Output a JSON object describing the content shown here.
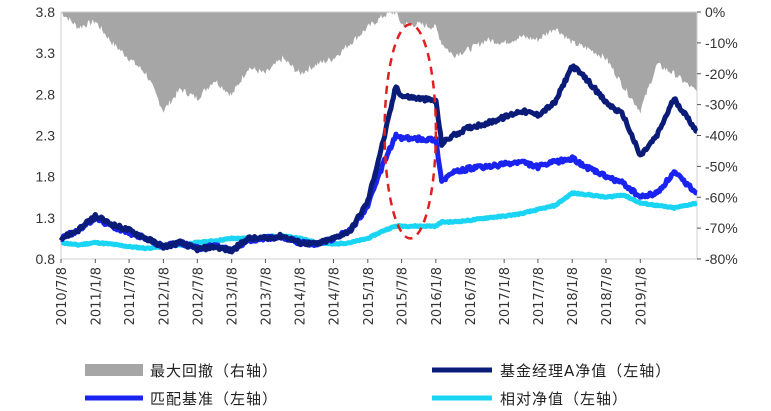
{
  "chart_data": {
    "type": "line",
    "x_ticks": [
      "2010/7/8",
      "2011/1/8",
      "2011/7/8",
      "2012/1/8",
      "2012/7/8",
      "2013/1/8",
      "2013/7/8",
      "2014/1/8",
      "2014/7/8",
      "2015/1/8",
      "2015/7/8",
      "2016/1/8",
      "2016/7/8",
      "2017/1/8",
      "2017/7/8",
      "2018/1/8",
      "2018/7/8",
      "2019/1/8"
    ],
    "left_axis": {
      "ticks": [
        "0.8",
        "1.3",
        "1.8",
        "2.3",
        "2.8",
        "3.3",
        "3.8"
      ],
      "ylim": [
        0.8,
        3.8
      ]
    },
    "right_axis": {
      "ticks": [
        "0%",
        "-10%",
        "-20%",
        "-30%",
        "-40%",
        "-50%",
        "-60%",
        "-70%",
        "-80%"
      ],
      "ylim": [
        -80,
        0
      ]
    },
    "x_range": [
      "2010/7/8",
      "2019/11/8"
    ],
    "legend": [
      {
        "name": "最大回撤（右轴）",
        "color": "#a6a6a6",
        "style": "area"
      },
      {
        "name": "基金经理A净值（左轴）",
        "color": "#0b1c78",
        "style": "line"
      },
      {
        "name": "匹配基准（左轴）",
        "color": "#1a23f0",
        "style": "line"
      },
      {
        "name": "相对净值（左轴）",
        "color": "#19d4f2",
        "style": "line"
      }
    ],
    "series": [
      {
        "name": "最大回撤（右轴）",
        "axis": "right",
        "color": "#a6a6a6",
        "x": [
          "2010/7/8",
          "2010/10/8",
          "2011/1/8",
          "2011/4/8",
          "2011/7/8",
          "2011/10/8",
          "2012/1/8",
          "2012/4/8",
          "2012/7/8",
          "2012/10/8",
          "2013/1/8",
          "2013/4/8",
          "2013/7/8",
          "2013/10/8",
          "2014/1/8",
          "2014/4/8",
          "2014/7/8",
          "2014/10/8",
          "2015/1/8",
          "2015/4/8",
          "2015/6/8",
          "2015/7/8",
          "2015/10/8",
          "2016/1/8",
          "2016/2/8",
          "2016/4/8",
          "2016/7/8",
          "2016/10/8",
          "2017/1/8",
          "2017/4/8",
          "2017/7/8",
          "2017/10/8",
          "2018/1/8",
          "2018/4/8",
          "2018/7/8",
          "2018/10/8",
          "2019/1/8",
          "2019/4/8",
          "2019/7/8",
          "2019/11/8"
        ],
        "values": [
          0,
          -5,
          -3,
          -10,
          -15,
          -20,
          -32,
          -25,
          -28,
          -22,
          -27,
          -18,
          -20,
          -15,
          -20,
          -17,
          -15,
          -10,
          -5,
          -1,
          0,
          -4,
          -4,
          -5,
          -10,
          -14,
          -12,
          -9,
          -10,
          -8,
          -9,
          -5,
          -10,
          -12,
          -15,
          -24,
          -32,
          -17,
          -20,
          -26
        ]
      },
      {
        "name": "基金经理A净值（左轴）",
        "axis": "left",
        "color": "#0b1c78",
        "x": [
          "2010/7/8",
          "2010/10/8",
          "2011/1/8",
          "2011/4/8",
          "2011/7/8",
          "2011/10/8",
          "2012/1/8",
          "2012/4/8",
          "2012/7/8",
          "2012/10/8",
          "2013/1/8",
          "2013/4/8",
          "2013/7/8",
          "2013/10/8",
          "2014/1/8",
          "2014/4/8",
          "2014/7/8",
          "2014/10/8",
          "2015/1/8",
          "2015/4/8",
          "2015/6/8",
          "2015/7/8",
          "2015/10/8",
          "2016/1/8",
          "2016/2/8",
          "2016/4/8",
          "2016/7/8",
          "2016/10/8",
          "2017/1/8",
          "2017/4/8",
          "2017/7/8",
          "2017/10/8",
          "2018/1/8",
          "2018/4/8",
          "2018/7/8",
          "2018/10/8",
          "2019/1/8",
          "2019/4/8",
          "2019/7/8",
          "2019/11/8"
        ],
        "values": [
          1.05,
          1.15,
          1.32,
          1.22,
          1.15,
          1.05,
          0.95,
          1.0,
          0.92,
          0.95,
          0.9,
          1.05,
          1.05,
          1.08,
          1.0,
          0.98,
          1.05,
          1.15,
          1.5,
          2.3,
          2.9,
          2.78,
          2.75,
          2.72,
          2.2,
          2.3,
          2.4,
          2.45,
          2.52,
          2.6,
          2.55,
          2.7,
          3.15,
          2.95,
          2.7,
          2.55,
          2.05,
          2.3,
          2.75,
          2.35
        ]
      },
      {
        "name": "匹配基准（左轴）",
        "axis": "left",
        "color": "#1a23f0",
        "x": [
          "2010/7/8",
          "2010/10/8",
          "2011/1/8",
          "2011/4/8",
          "2011/7/8",
          "2011/10/8",
          "2012/1/8",
          "2012/4/8",
          "2012/7/8",
          "2012/10/8",
          "2013/1/8",
          "2013/4/8",
          "2013/7/8",
          "2013/10/8",
          "2014/1/8",
          "2014/4/8",
          "2014/7/8",
          "2014/10/8",
          "2015/1/8",
          "2015/4/8",
          "2015/6/8",
          "2015/7/8",
          "2015/10/8",
          "2016/1/8",
          "2016/2/8",
          "2016/4/8",
          "2016/7/8",
          "2016/10/8",
          "2017/1/8",
          "2017/4/8",
          "2017/7/8",
          "2017/10/8",
          "2018/1/8",
          "2018/4/8",
          "2018/7/8",
          "2018/10/8",
          "2019/1/8",
          "2019/4/8",
          "2019/7/8",
          "2019/11/8"
        ],
        "values": [
          1.05,
          1.15,
          1.3,
          1.2,
          1.12,
          1.05,
          0.95,
          1.0,
          0.93,
          0.96,
          0.9,
          1.03,
          1.05,
          1.07,
          1.0,
          0.98,
          1.05,
          1.15,
          1.45,
          2.0,
          2.3,
          2.27,
          2.26,
          2.25,
          1.75,
          1.85,
          1.9,
          1.92,
          1.95,
          1.98,
          1.92,
          1.98,
          2.02,
          1.9,
          1.8,
          1.72,
          1.55,
          1.6,
          1.85,
          1.6
        ]
      },
      {
        "name": "相对净值（左轴）",
        "axis": "left",
        "color": "#19d4f2",
        "x": [
          "2010/7/8",
          "2010/10/8",
          "2011/1/8",
          "2011/4/8",
          "2011/7/8",
          "2011/10/8",
          "2012/1/8",
          "2012/4/8",
          "2012/7/8",
          "2012/10/8",
          "2013/1/8",
          "2013/4/8",
          "2013/7/8",
          "2013/10/8",
          "2014/1/8",
          "2014/4/8",
          "2014/7/8",
          "2014/10/8",
          "2015/1/8",
          "2015/4/8",
          "2015/6/8",
          "2015/7/8",
          "2015/10/8",
          "2016/1/8",
          "2016/2/8",
          "2016/4/8",
          "2016/7/8",
          "2016/10/8",
          "2017/1/8",
          "2017/4/8",
          "2017/7/8",
          "2017/10/8",
          "2018/1/8",
          "2018/4/8",
          "2018/7/8",
          "2018/10/8",
          "2019/1/8",
          "2019/4/8",
          "2019/7/8",
          "2019/11/8"
        ],
        "values": [
          1.0,
          0.97,
          1.0,
          0.98,
          0.95,
          0.93,
          0.95,
          0.97,
          1.0,
          1.02,
          1.05,
          1.05,
          1.07,
          1.08,
          1.05,
          1.0,
          0.98,
          1.0,
          1.05,
          1.15,
          1.2,
          1.2,
          1.2,
          1.2,
          1.25,
          1.25,
          1.27,
          1.3,
          1.32,
          1.35,
          1.4,
          1.45,
          1.6,
          1.58,
          1.55,
          1.58,
          1.48,
          1.45,
          1.42,
          1.48
        ]
      }
    ],
    "annotation": {
      "shape": "ellipse",
      "style": "dashed",
      "color": "#e02020",
      "x_range": [
        "2015/4/8",
        "2016/1/8"
      ],
      "y_range": [
        1.05,
        3.65
      ]
    }
  }
}
